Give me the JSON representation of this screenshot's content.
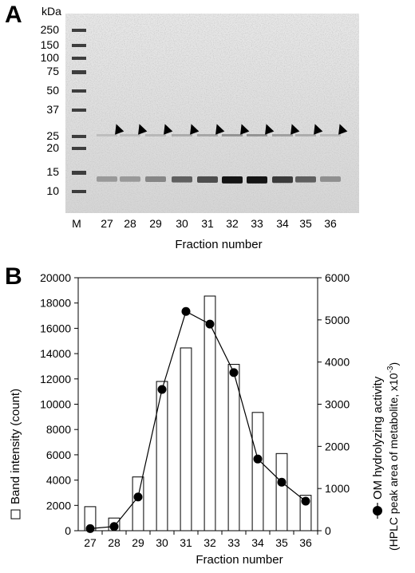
{
  "figure": {
    "panel_a_label": "A",
    "panel_b_label": "B"
  },
  "gel": {
    "kda_label": "kDa",
    "marker_label": "M",
    "marker_weights": [
      "250",
      "150",
      "100",
      "75",
      "50",
      "37",
      "25",
      "20",
      "15",
      "10"
    ],
    "lanes": [
      "27",
      "28",
      "29",
      "30",
      "31",
      "32",
      "33",
      "34",
      "35",
      "36"
    ],
    "xlabel": "Fraction number",
    "band_intensity_by_lane": [
      0.25,
      0.25,
      0.35,
      0.55,
      0.65,
      0.95,
      0.95,
      0.75,
      0.55,
      0.3
    ]
  },
  "chart_data": {
    "type": "bar",
    "categories": [
      "27",
      "28",
      "29",
      "30",
      "31",
      "32",
      "33",
      "34",
      "35",
      "36"
    ],
    "series": [
      {
        "name": "Band intensity (count)",
        "type": "bar",
        "axis": "left",
        "values": [
          1900,
          1000,
          4250,
          11800,
          14450,
          18550,
          13150,
          9350,
          6100,
          2800
        ]
      },
      {
        "name": "OM hydrolyzing activity",
        "type": "line",
        "axis": "right",
        "values": [
          50,
          100,
          800,
          3350,
          5200,
          4900,
          3750,
          1700,
          1150,
          700
        ]
      }
    ],
    "xlabel": "Fraction number",
    "ylabel": "Band intensity (count)",
    "y2label_line1": "OM hydrolyzing activity",
    "y2label_line2": "(HPLC peak area of metabolite, x10",
    "y2label_exp": "-3",
    "y2label_close": ")",
    "ylim": [
      0,
      20000
    ],
    "y2lim": [
      0,
      6000
    ],
    "yticks": [
      "0",
      "2000",
      "4000",
      "6000",
      "8000",
      "10000",
      "12000",
      "14000",
      "16000",
      "18000",
      "20000"
    ],
    "y2ticks": [
      "0",
      "1000",
      "2000",
      "3000",
      "4000",
      "5000",
      "6000"
    ],
    "grid": false
  }
}
